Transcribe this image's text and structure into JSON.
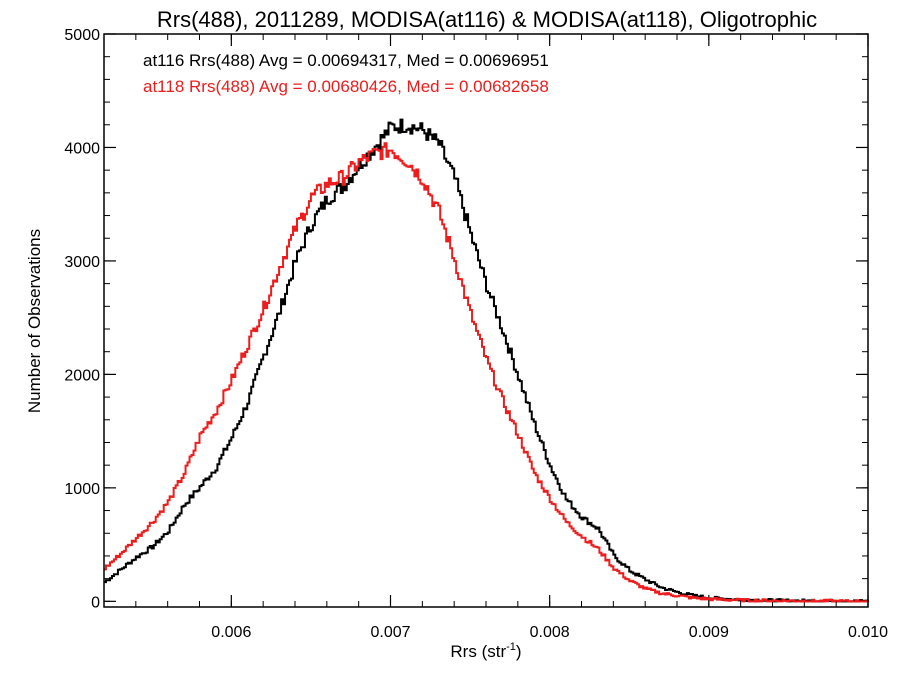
{
  "chart_data": {
    "type": "line",
    "title": "Rrs(488), 2011289, MODISA(at116) & MODISA(at118), Oligotrophic",
    "xlabel": "Rrs (str",
    "xlabel_sup": "-1",
    "xlabel_suffix": ")",
    "ylabel": "Number of Observations",
    "xlim": [
      0.0052,
      0.01
    ],
    "ylim": [
      -50,
      5000
    ],
    "x_ticks": [
      0.006,
      0.007,
      0.008,
      0.009,
      0.01
    ],
    "x_tick_labels": [
      "0.006",
      "0.007",
      "0.008",
      "0.009",
      "0.010"
    ],
    "y_ticks": [
      0,
      1000,
      2000,
      3000,
      4000,
      5000
    ],
    "y_tick_labels": [
      "0",
      "1000",
      "2000",
      "3000",
      "4000",
      "5000"
    ],
    "grid": false,
    "legend_placement": "top-left",
    "step_style": "histogram",
    "series": [
      {
        "name": "at116 Rrs(488) Avg = 0.00694317, Med = 0.00696951",
        "color": "#000000",
        "x": [
          0.0052,
          0.0053,
          0.0054,
          0.0055,
          0.0056,
          0.0057,
          0.0058,
          0.0059,
          0.006,
          0.0061,
          0.0062,
          0.0063,
          0.0064,
          0.0065,
          0.0066,
          0.0067,
          0.0068,
          0.0069,
          0.007,
          0.0071,
          0.0072,
          0.0073,
          0.0074,
          0.0075,
          0.0076,
          0.0077,
          0.0078,
          0.0079,
          0.008,
          0.0081,
          0.0082,
          0.0083,
          0.0084,
          0.0085,
          0.0086,
          0.0087,
          0.0088,
          0.0089,
          0.009,
          0.0092,
          0.0094,
          0.0096,
          0.0098,
          0.01
        ],
        "values": [
          170,
          280,
          390,
          480,
          620,
          850,
          1010,
          1180,
          1450,
          1760,
          2170,
          2560,
          3000,
          3330,
          3550,
          3660,
          3850,
          4010,
          4180,
          4200,
          4150,
          4030,
          3720,
          3230,
          2780,
          2390,
          1980,
          1560,
          1190,
          900,
          740,
          640,
          400,
          270,
          190,
          120,
          80,
          50,
          30,
          15,
          8,
          4,
          2,
          0
        ]
      },
      {
        "name": "at118 Rrs(488) Avg = 0.00680426, Med = 0.00682658",
        "color": "#ee1c1c",
        "x": [
          0.0052,
          0.0053,
          0.0054,
          0.0055,
          0.0056,
          0.0057,
          0.0058,
          0.0059,
          0.006,
          0.0061,
          0.0062,
          0.0063,
          0.0064,
          0.0065,
          0.0066,
          0.0067,
          0.0068,
          0.0069,
          0.007,
          0.0071,
          0.0072,
          0.0073,
          0.0074,
          0.0075,
          0.0076,
          0.0077,
          0.0078,
          0.0079,
          0.008,
          0.0081,
          0.0082,
          0.0083,
          0.0084,
          0.0085,
          0.0086,
          0.0087,
          0.0088,
          0.0089,
          0.009,
          0.0092,
          0.0094,
          0.0096,
          0.0098,
          0.01
        ],
        "values": [
          290,
          420,
          560,
          700,
          880,
          1130,
          1460,
          1680,
          1960,
          2270,
          2590,
          2950,
          3290,
          3560,
          3680,
          3740,
          3870,
          3950,
          3980,
          3880,
          3720,
          3430,
          3000,
          2530,
          2120,
          1770,
          1460,
          1130,
          900,
          700,
          570,
          460,
          290,
          180,
          110,
          70,
          50,
          30,
          20,
          10,
          5,
          3,
          1,
          0
        ]
      }
    ]
  }
}
